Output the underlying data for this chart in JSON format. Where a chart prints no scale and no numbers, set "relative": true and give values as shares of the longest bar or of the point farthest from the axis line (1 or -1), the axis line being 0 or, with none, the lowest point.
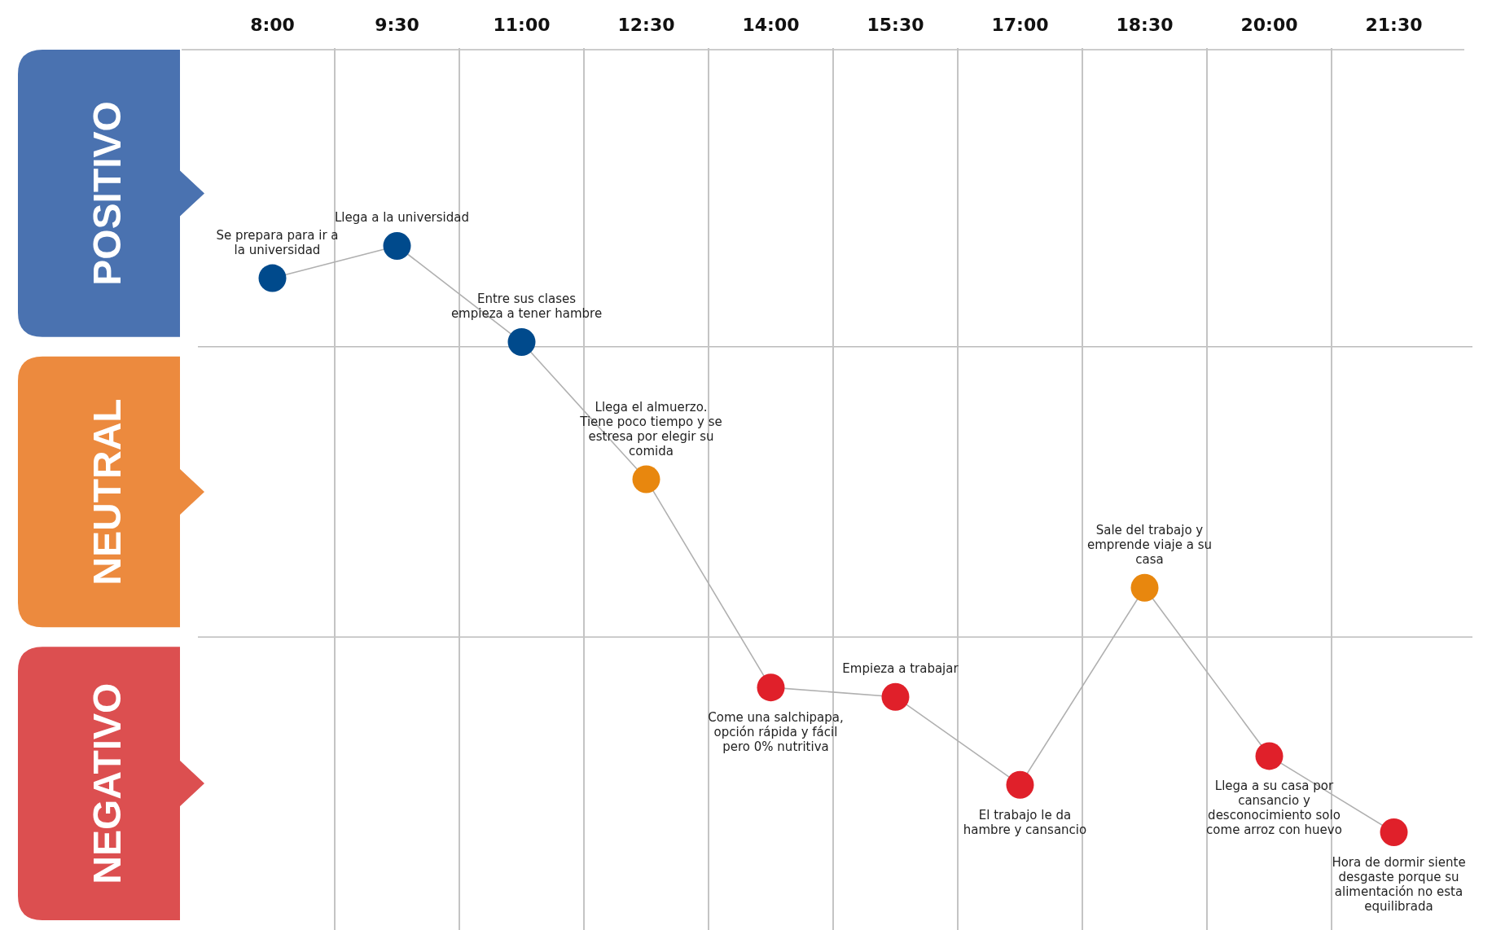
{
  "chart_data": {
    "type": "line",
    "relative": true,
    "categories": [
      "8:00",
      "9:30",
      "11:00",
      "12:30",
      "14:00",
      "15:30",
      "17:00",
      "18:30",
      "20:00",
      "21:30"
    ],
    "series": [
      {
        "color": "#b0b0b0",
        "colors": [
          "#004a8c",
          "#004a8c",
          "#004a8c",
          "#e8870e",
          "#e0202a",
          "#e0202a",
          "#e0202a",
          "#e8870e",
          "#e0202a",
          "#e0202a"
        ],
        "values": [
          0.945,
          1,
          0.836,
          0.602,
          0.247,
          0.231,
          0.081,
          0.417,
          0.13,
          0
        ]
      }
    ],
    "marker": "circle",
    "grid": "x",
    "ref_lines": [
      {
        "axis": "y",
        "value": 0.828,
        "color": "#bbbbbb"
      },
      {
        "axis": "y",
        "value": 0.333,
        "color": "#bbbbbb"
      }
    ],
    "annotations": [
      "POSITIVO",
      "NEUTRAL",
      "NEGATIVO",
      {
        "text": "Se prepara para ir a la universidad",
        "x": "8:00",
        "y": 0.945
      },
      {
        "text": "Llega a la universidad",
        "x": "9:30",
        "y": 1
      },
      {
        "text": "Entre sus clases empieza a tener hambre",
        "x": "11:00",
        "y": 0.836
      },
      {
        "text": "Llega el almuerzo. Tiene poco tiempo y se estresa por elegir su comida",
        "x": "12:30",
        "y": 0.602
      },
      {
        "text": "Come una salchipapa, opción rápida y fácil pero 0% nutritiva",
        "x": "14:00",
        "y": 0.247
      },
      {
        "text": "Empieza a trabajar",
        "x": "15:30",
        "y": 0.231
      },
      {
        "text": "El trabajo le da hambre y cansancio",
        "x": "17:00",
        "y": 0.081
      },
      {
        "text": "Sale del trabajo y emprende viaje a su casa",
        "x": "18:30",
        "y": 0.417
      },
      {
        "text": "Llega a su casa por cansancio y desconocimiento solo come arroz con huevo",
        "x": "20:00",
        "y": 0.13
      },
      {
        "text": "Hora de dormir siente desgaste porque su alimentación no esta equilibrada",
        "x": "21:30",
        "y": 0
      }
    ]
  }
}
